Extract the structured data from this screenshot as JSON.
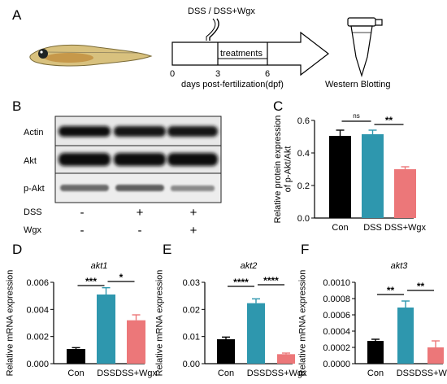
{
  "panel_a": {
    "letter": "A",
    "treatment_label": "DSS / DSS+Wgx",
    "treatments_text": "treatments",
    "timeline_ticks": [
      "0",
      "3",
      "6"
    ],
    "axis_caption": "days post-fertilization(dpf)",
    "western_caption": "Western Blotting"
  },
  "panel_b": {
    "letter": "B",
    "bands": [
      "Actin",
      "Akt",
      "p-Akt"
    ],
    "row_labels": [
      "DSS",
      "Wgx"
    ],
    "signs": [
      [
        "-",
        "+",
        "+"
      ],
      [
        "-",
        "-",
        "+"
      ]
    ]
  },
  "colors": {
    "con": "#000000",
    "dss": "#2e97ae",
    "dss_wgx": "#ec7779"
  },
  "chart_data": [
    {
      "panel": "C",
      "type": "bar",
      "categories": [
        "Con",
        "DSS",
        "DSS+Wgx"
      ],
      "values": [
        0.505,
        0.515,
        0.3
      ],
      "errors": [
        0.035,
        0.025,
        0.015
      ],
      "ylabel": "Relative protein expression\nof p-Akt/Akt",
      "ylim": [
        0,
        0.6
      ],
      "yticks": [
        "0.0",
        "0.2",
        "0.4",
        "0.6"
      ],
      "significance": [
        {
          "from": 0,
          "to": 1,
          "label": "ns"
        },
        {
          "from": 1,
          "to": 2,
          "label": "**"
        }
      ]
    },
    {
      "panel": "D",
      "type": "bar",
      "title": "akt1",
      "categories": [
        "Con",
        "DSS",
        "DSS+Wgx"
      ],
      "values": [
        0.00108,
        0.0051,
        0.0032
      ],
      "errors": [
        0.0001,
        0.0005,
        0.0004
      ],
      "ylabel": "Relative mRNA expression",
      "ylim": [
        0,
        0.006
      ],
      "yticks": [
        "0.000",
        "0.002",
        "0.004",
        "0.006"
      ],
      "significance": [
        {
          "from": 0,
          "to": 1,
          "label": "***"
        },
        {
          "from": 1,
          "to": 2,
          "label": "*"
        }
      ]
    },
    {
      "panel": "E",
      "type": "bar",
      "title": "akt2",
      "categories": [
        "Con",
        "DSS",
        "DSS+Wgx"
      ],
      "values": [
        0.009,
        0.0223,
        0.0035
      ],
      "errors": [
        0.0008,
        0.0016,
        0.0004
      ],
      "ylabel": "Relative mRNA expression",
      "ylim": [
        0,
        0.03
      ],
      "yticks": [
        "0.00",
        "0.01",
        "0.02",
        "0.03"
      ],
      "significance": [
        {
          "from": 0,
          "to": 1,
          "label": "****"
        },
        {
          "from": 1,
          "to": 2,
          "label": "****"
        }
      ]
    },
    {
      "panel": "F",
      "type": "bar",
      "title": "akt3",
      "categories": [
        "Con",
        "DSS",
        "DSS+Wgx"
      ],
      "values": [
        0.00028,
        0.00069,
        0.0002
      ],
      "errors": [
        2e-05,
        8e-05,
        8e-05
      ],
      "ylabel": "Relative mRNA expression",
      "ylim": [
        0,
        0.001
      ],
      "yticks": [
        "0.0000",
        "0.0002",
        "0.0004",
        "0.0006",
        "0.0008",
        "0.0010"
      ],
      "significance": [
        {
          "from": 0,
          "to": 1,
          "label": "**"
        },
        {
          "from": 1,
          "to": 2,
          "label": "**"
        }
      ]
    }
  ]
}
